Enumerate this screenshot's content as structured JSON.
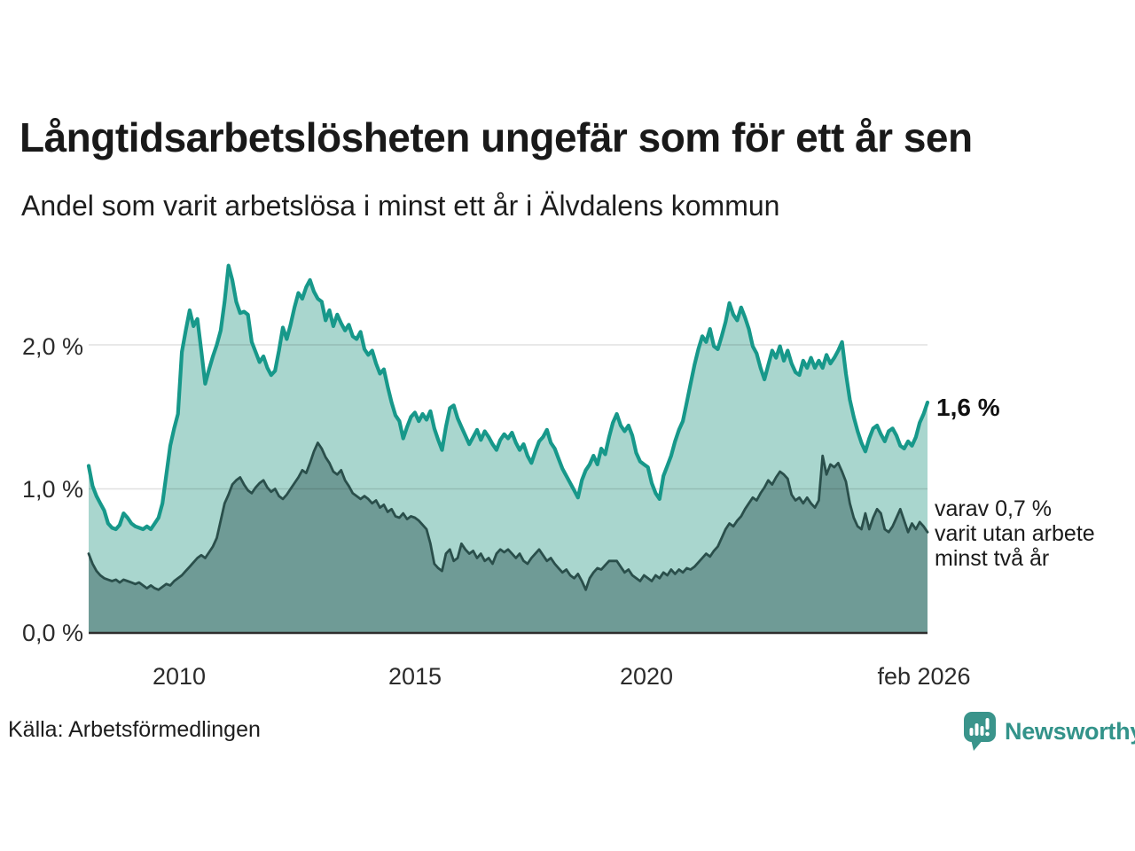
{
  "header": {
    "title": "Långtidsarbetslösheten ungefär som för ett år sen",
    "subtitle": "Andel som varit arbetslösa i minst ett år i Älvdalens kommun"
  },
  "annotations": {
    "latest_value": "1,6 %",
    "secondary_line1": "varav 0,7 %",
    "secondary_line2": "varit utan arbete",
    "secondary_line3": "minst två år"
  },
  "footer": {
    "source": "Källa: Arbetsförmedlingen",
    "brand": "Newsworthy"
  },
  "colors": {
    "line_total": "#17988a",
    "fill_total": "#a9d6ce",
    "line_two_years": "#2a4f4b",
    "fill_two_years": "#6f9b96",
    "gridline": "rgba(0,0,0,0.12)",
    "axis": "#2e2e2e",
    "brand_teal": "#3a948b"
  },
  "chart_data": {
    "type": "area",
    "title": "Långtidsarbetslösheten ungefär som för ett år sen",
    "subtitle": "Andel som varit arbetslösa i minst ett år i Älvdalens kommun",
    "unit": "%",
    "xlim": [
      2008.0833,
      2026.0833
    ],
    "ylim": [
      0,
      2.55
    ],
    "grid": "horizontal",
    "legend_position": "right-annotations",
    "yticks": [
      {
        "value": 0,
        "label": "0,0 %"
      },
      {
        "value": 1,
        "label": "1,0 %"
      },
      {
        "value": 2,
        "label": "2,0 %"
      }
    ],
    "xticks": [
      {
        "value": 2010,
        "label": "2010"
      },
      {
        "value": 2015,
        "label": "2015"
      },
      {
        "value": 2020,
        "label": "2020"
      },
      {
        "value": 2026.0833,
        "label": "feb 2026"
      }
    ],
    "latest": {
      "minst_ett_ar_pct": 1.6,
      "minst_tva_ar_pct": 0.7
    },
    "series": [
      {
        "name": "Andel arbetslösa minst ett år",
        "color": "#17988a",
        "fill": "#a9d6ce",
        "width": 4.2,
        "x_start": 2008.0833,
        "x_step": 0.083333,
        "values": [
          1.16,
          1.02,
          0.95,
          0.9,
          0.85,
          0.76,
          0.73,
          0.72,
          0.75,
          0.83,
          0.8,
          0.76,
          0.74,
          0.73,
          0.72,
          0.74,
          0.72,
          0.76,
          0.8,
          0.9,
          1.1,
          1.3,
          1.42,
          1.52,
          1.95,
          2.1,
          2.24,
          2.13,
          2.18,
          1.96,
          1.73,
          1.83,
          1.92,
          2.0,
          2.1,
          2.3,
          2.55,
          2.45,
          2.3,
          2.22,
          2.23,
          2.21,
          2.02,
          1.95,
          1.88,
          1.92,
          1.84,
          1.79,
          1.82,
          1.96,
          2.12,
          2.04,
          2.14,
          2.26,
          2.36,
          2.32,
          2.4,
          2.45,
          2.37,
          2.32,
          2.3,
          2.17,
          2.24,
          2.13,
          2.21,
          2.15,
          2.1,
          2.14,
          2.06,
          2.04,
          2.09,
          1.97,
          1.93,
          1.96,
          1.87,
          1.8,
          1.83,
          1.71,
          1.6,
          1.51,
          1.47,
          1.35,
          1.43,
          1.5,
          1.53,
          1.47,
          1.52,
          1.48,
          1.54,
          1.42,
          1.34,
          1.27,
          1.43,
          1.56,
          1.58,
          1.49,
          1.43,
          1.37,
          1.31,
          1.36,
          1.41,
          1.34,
          1.4,
          1.36,
          1.31,
          1.27,
          1.34,
          1.38,
          1.35,
          1.39,
          1.32,
          1.27,
          1.31,
          1.23,
          1.18,
          1.26,
          1.33,
          1.36,
          1.41,
          1.32,
          1.28,
          1.21,
          1.14,
          1.09,
          1.04,
          0.99,
          0.94,
          1.06,
          1.13,
          1.17,
          1.23,
          1.17,
          1.28,
          1.24,
          1.36,
          1.46,
          1.52,
          1.44,
          1.4,
          1.44,
          1.37,
          1.25,
          1.19,
          1.17,
          1.15,
          1.04,
          0.97,
          0.93,
          1.09,
          1.16,
          1.23,
          1.33,
          1.41,
          1.47,
          1.6,
          1.73,
          1.86,
          1.97,
          2.06,
          2.02,
          2.11,
          1.99,
          1.97,
          2.06,
          2.16,
          2.29,
          2.21,
          2.17,
          2.26,
          2.19,
          2.11,
          1.99,
          1.94,
          1.84,
          1.76,
          1.86,
          1.96,
          1.91,
          1.99,
          1.89,
          1.96,
          1.87,
          1.81,
          1.79,
          1.89,
          1.84,
          1.91,
          1.84,
          1.89,
          1.84,
          1.93,
          1.87,
          1.91,
          1.96,
          2.02,
          1.8,
          1.62,
          1.5,
          1.4,
          1.32,
          1.26,
          1.35,
          1.42,
          1.44,
          1.38,
          1.33,
          1.4,
          1.42,
          1.37,
          1.3,
          1.28,
          1.33,
          1.3,
          1.36,
          1.46,
          1.52,
          1.6
        ]
      },
      {
        "name": "Andel arbetslösa minst två år",
        "color": "#2a4f4b",
        "fill": "#6f9b96",
        "width": 2.8,
        "x_start": 2008.0833,
        "x_step": 0.083333,
        "values": [
          0.55,
          0.48,
          0.43,
          0.4,
          0.38,
          0.37,
          0.36,
          0.37,
          0.35,
          0.37,
          0.36,
          0.35,
          0.34,
          0.35,
          0.33,
          0.31,
          0.33,
          0.31,
          0.3,
          0.32,
          0.34,
          0.33,
          0.36,
          0.38,
          0.4,
          0.43,
          0.46,
          0.49,
          0.52,
          0.54,
          0.52,
          0.56,
          0.6,
          0.66,
          0.78,
          0.9,
          0.96,
          1.03,
          1.06,
          1.08,
          1.03,
          0.99,
          0.97,
          1.01,
          1.04,
          1.06,
          1.01,
          0.98,
          1.0,
          0.95,
          0.93,
          0.96,
          1.0,
          1.04,
          1.08,
          1.13,
          1.11,
          1.18,
          1.26,
          1.32,
          1.28,
          1.22,
          1.18,
          1.12,
          1.1,
          1.13,
          1.06,
          1.02,
          0.97,
          0.95,
          0.93,
          0.95,
          0.93,
          0.9,
          0.92,
          0.87,
          0.89,
          0.84,
          0.86,
          0.81,
          0.8,
          0.83,
          0.79,
          0.81,
          0.8,
          0.78,
          0.75,
          0.72,
          0.62,
          0.48,
          0.45,
          0.43,
          0.55,
          0.58,
          0.5,
          0.52,
          0.62,
          0.58,
          0.55,
          0.57,
          0.52,
          0.55,
          0.5,
          0.52,
          0.48,
          0.55,
          0.58,
          0.56,
          0.58,
          0.55,
          0.52,
          0.55,
          0.5,
          0.48,
          0.52,
          0.55,
          0.58,
          0.54,
          0.5,
          0.52,
          0.48,
          0.45,
          0.42,
          0.44,
          0.4,
          0.38,
          0.41,
          0.36,
          0.3,
          0.38,
          0.42,
          0.45,
          0.44,
          0.47,
          0.5,
          0.5,
          0.5,
          0.46,
          0.42,
          0.44,
          0.4,
          0.38,
          0.36,
          0.4,
          0.38,
          0.36,
          0.4,
          0.38,
          0.42,
          0.4,
          0.44,
          0.41,
          0.44,
          0.42,
          0.45,
          0.44,
          0.46,
          0.49,
          0.52,
          0.55,
          0.53,
          0.57,
          0.6,
          0.66,
          0.72,
          0.76,
          0.74,
          0.78,
          0.81,
          0.86,
          0.9,
          0.94,
          0.92,
          0.97,
          1.01,
          1.06,
          1.03,
          1.08,
          1.12,
          1.1,
          1.07,
          0.96,
          0.92,
          0.94,
          0.9,
          0.94,
          0.9,
          0.87,
          0.92,
          1.23,
          1.1,
          1.17,
          1.15,
          1.18,
          1.12,
          1.05,
          0.9,
          0.8,
          0.74,
          0.72,
          0.83,
          0.72,
          0.8,
          0.86,
          0.83,
          0.72,
          0.7,
          0.74,
          0.8,
          0.86,
          0.78,
          0.7,
          0.76,
          0.72,
          0.77,
          0.74,
          0.7
        ]
      }
    ]
  }
}
